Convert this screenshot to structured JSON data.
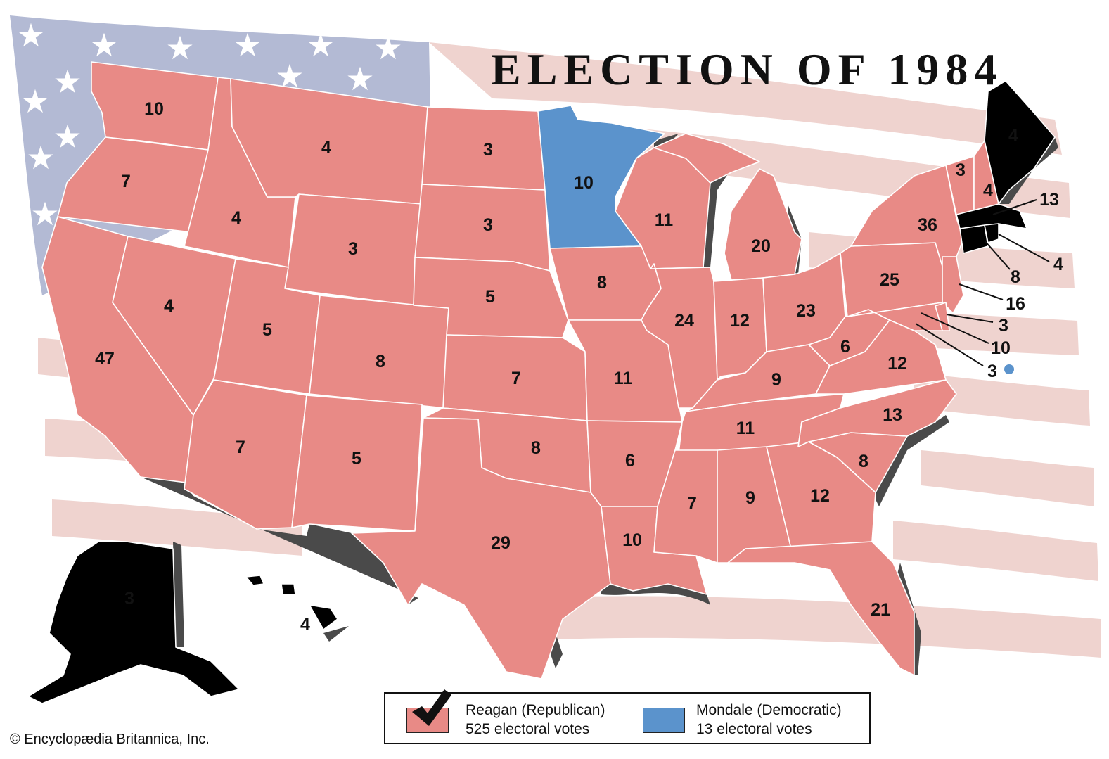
{
  "title": "ELECTION OF 1984",
  "colors": {
    "republican": "#e88a86",
    "democratic": "#5b93cc",
    "flag_blue": "#b3bad4",
    "flag_stripe": "#efd3cf",
    "shadow": "#4a4a4a"
  },
  "states": [
    {
      "label": "10",
      "party": "republican"
    },
    {
      "label": "7",
      "party": "republican"
    },
    {
      "label": "47",
      "party": "republican"
    },
    {
      "label": "4",
      "party": "republican"
    },
    {
      "label": "4",
      "party": "republican"
    },
    {
      "label": "4",
      "party": "republican"
    },
    {
      "label": "3",
      "party": "republican"
    },
    {
      "label": "5",
      "party": "republican"
    },
    {
      "label": "8",
      "party": "republican"
    },
    {
      "label": "7",
      "party": "republican"
    },
    {
      "label": "5",
      "party": "republican"
    },
    {
      "label": "3",
      "party": "republican"
    },
    {
      "label": "3",
      "party": "republican"
    },
    {
      "label": "5",
      "party": "republican"
    },
    {
      "label": "7",
      "party": "republican"
    },
    {
      "label": "8",
      "party": "republican"
    },
    {
      "label": "29",
      "party": "republican"
    },
    {
      "label": "10",
      "party": "democratic"
    },
    {
      "label": "8",
      "party": "republican"
    },
    {
      "label": "11",
      "party": "republican"
    },
    {
      "label": "6",
      "party": "republican"
    },
    {
      "label": "10",
      "party": "republican"
    },
    {
      "label": "11",
      "party": "republican"
    },
    {
      "label": "24",
      "party": "republican"
    },
    {
      "label": "20",
      "party": "republican"
    },
    {
      "label": "12",
      "party": "republican"
    },
    {
      "label": "23",
      "party": "republican"
    },
    {
      "label": "9",
      "party": "republican"
    },
    {
      "label": "11",
      "party": "republican"
    },
    {
      "label": "7",
      "party": "republican"
    },
    {
      "label": "9",
      "party": "republican"
    },
    {
      "label": "12",
      "party": "republican"
    },
    {
      "label": "21",
      "party": "republican"
    },
    {
      "label": "8",
      "party": "republican"
    },
    {
      "label": "13",
      "party": "republican"
    },
    {
      "label": "12",
      "party": "republican"
    },
    {
      "label": "6",
      "party": "republican"
    },
    {
      "label": "25",
      "party": "republican"
    },
    {
      "label": "36",
      "party": "republican"
    },
    {
      "label": "3",
      "party": "republican"
    },
    {
      "label": "4",
      "party": "republican"
    },
    {
      "label": "4",
      "party": "republican"
    },
    {
      "label": "3",
      "party": "republican"
    },
    {
      "label": "4",
      "party": "republican"
    }
  ],
  "callouts": [
    {
      "label": "13"
    },
    {
      "label": "4"
    },
    {
      "label": "8"
    },
    {
      "label": "16"
    },
    {
      "label": "3"
    },
    {
      "label": "10"
    },
    {
      "label": "3",
      "dc_marker": true,
      "marker_party": "democratic"
    }
  ],
  "legend": {
    "reagan_name": "Reagan (Republican)",
    "reagan_votes": "525 electoral votes",
    "mondale_name": "Mondale (Democratic)",
    "mondale_votes": "13 electoral votes"
  },
  "copyright": "© Encyclopædia Britannica, Inc."
}
